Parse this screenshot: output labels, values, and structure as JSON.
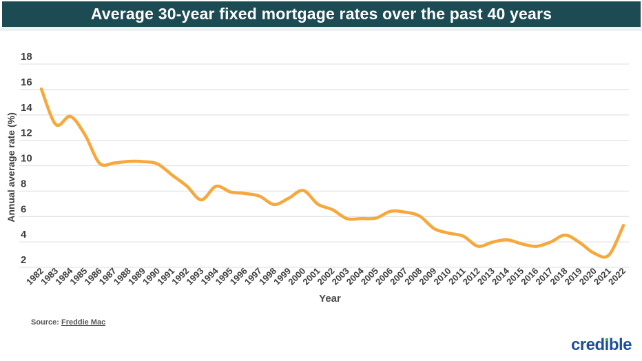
{
  "header": {
    "title": "Average 30-year fixed mortgage rates over the past 40 years"
  },
  "chart_data": {
    "type": "line",
    "title": "Average 30-year fixed mortgage rates over the past 40 years",
    "xlabel": "Year",
    "ylabel": "Annual average rate (%)",
    "categories": [
      "1982",
      "1983",
      "1984",
      "1985",
      "1986",
      "1987",
      "1988",
      "1989",
      "1990",
      "1991",
      "1992",
      "1993",
      "1994",
      "1995",
      "1996",
      "1997",
      "1998",
      "1999",
      "2000",
      "2001",
      "2002",
      "2003",
      "2004",
      "2005",
      "2006",
      "2007",
      "2008",
      "2009",
      "2010",
      "2011",
      "2012",
      "2013",
      "2014",
      "2015",
      "2016",
      "2017",
      "2018",
      "2019",
      "2020",
      "2021",
      "2022"
    ],
    "series": [
      {
        "name": "30-year fixed mortgage rate",
        "values": [
          16.04,
          13.24,
          13.88,
          12.43,
          10.19,
          10.21,
          10.34,
          10.32,
          10.13,
          9.25,
          8.39,
          7.31,
          8.38,
          7.93,
          7.81,
          7.6,
          6.94,
          7.44,
          8.05,
          6.97,
          6.54,
          5.83,
          5.84,
          5.87,
          6.41,
          6.34,
          6.03,
          5.04,
          4.69,
          4.45,
          3.66,
          3.98,
          4.17,
          3.85,
          3.65,
          3.99,
          4.54,
          3.94,
          3.1,
          2.96,
          5.3
        ]
      }
    ],
    "ylim": [
      2,
      18
    ],
    "yticks": [
      2,
      4,
      6,
      8,
      10,
      12,
      14,
      16,
      18
    ],
    "grid": true,
    "legend": false,
    "line_smoothing": true
  },
  "colors": {
    "title_bar_bg": "#1D4B54",
    "title_text": "#FFFFFF",
    "line": "#F6A83C",
    "grid": "#E3E3E3",
    "tick_label": "#3D3D3D",
    "axis_title": "#3D3D3D",
    "source_text": "#555555",
    "logo_blue": "#1E4E9D",
    "logo_green": "#3FAE5A"
  },
  "source": {
    "prefix": "Source: ",
    "link_text": "Freddie Mac"
  },
  "logo": {
    "pre": "cred",
    "i_char": "ı",
    "post": "ble"
  }
}
